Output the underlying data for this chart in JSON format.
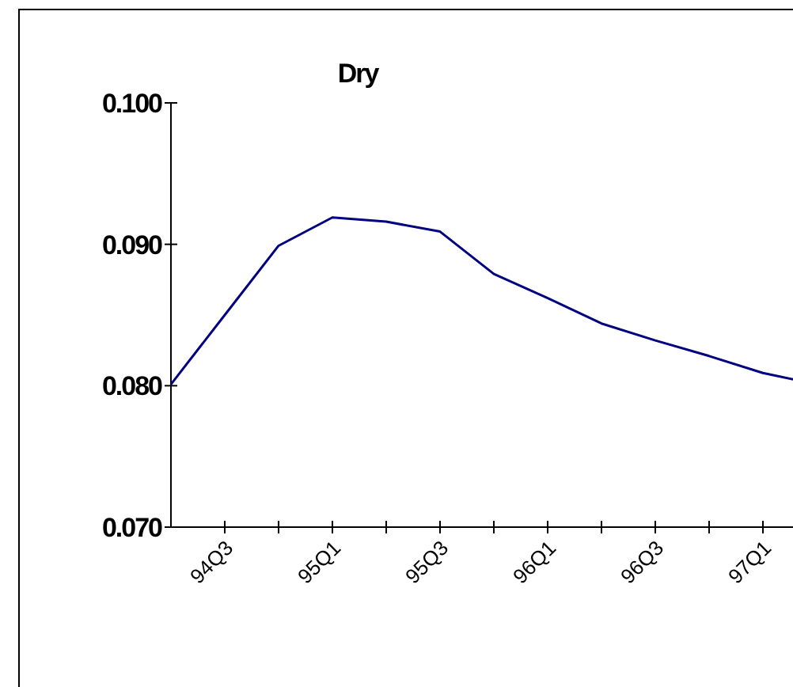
{
  "chart_data": {
    "type": "line",
    "title": "Dry",
    "categories": [
      null,
      "94Q3",
      null,
      "95Q1",
      null,
      "95Q3",
      null,
      "96Q1",
      null,
      "96Q3",
      null,
      "97Q1",
      null
    ],
    "series": [
      {
        "color": "#000080",
        "values": [
          0.0801,
          0.085,
          0.0899,
          0.0919,
          0.0916,
          0.0909,
          0.0879,
          0.0862,
          0.0844,
          0.0832,
          0.0821,
          0.0809,
          0.0801
        ]
      }
    ],
    "ylim": [
      0.07,
      0.1
    ],
    "yticks": [
      {
        "value": 0.07,
        "label": "0.070"
      },
      {
        "value": 0.08,
        "label": "0.080"
      },
      {
        "value": 0.09,
        "label": "0.090"
      },
      {
        "value": 0.1,
        "label": "0.100"
      }
    ],
    "grid": false,
    "marker": "none",
    "line_style": "solid"
  }
}
